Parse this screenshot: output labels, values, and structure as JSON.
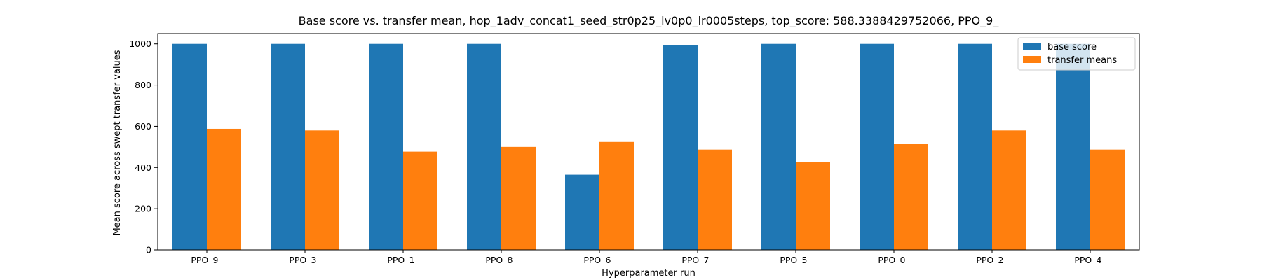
{
  "chart_data": {
    "type": "bar",
    "title": "Base score vs. transfer mean, hop_1adv_concat1_seed_str0p25_lv0p0_lr0005steps, top_score: 588.3388429752066, PPO_9_",
    "xlabel": "Hyperparameter run",
    "ylabel": "Mean score across swept transfer values",
    "categories": [
      "PPO_9_",
      "PPO_3_",
      "PPO_1_",
      "PPO_8_",
      "PPO_6_",
      "PPO_7_",
      "PPO_5_",
      "PPO_0_",
      "PPO_2_",
      "PPO_4_"
    ],
    "series": [
      {
        "name": "base score",
        "color": "#1f77b4",
        "values": [
          1000,
          1000,
          1000,
          1000,
          365,
          993,
          1000,
          1000,
          1000,
          1000
        ]
      },
      {
        "name": "transfer means",
        "color": "#ff7f0e",
        "values": [
          588,
          580,
          477,
          500,
          524,
          487,
          426,
          515,
          580,
          487
        ]
      }
    ],
    "ylim": [
      0,
      1050
    ],
    "yticks": [
      0,
      200,
      400,
      600,
      800,
      1000
    ],
    "legend_position": "top-right",
    "grid": false
  }
}
